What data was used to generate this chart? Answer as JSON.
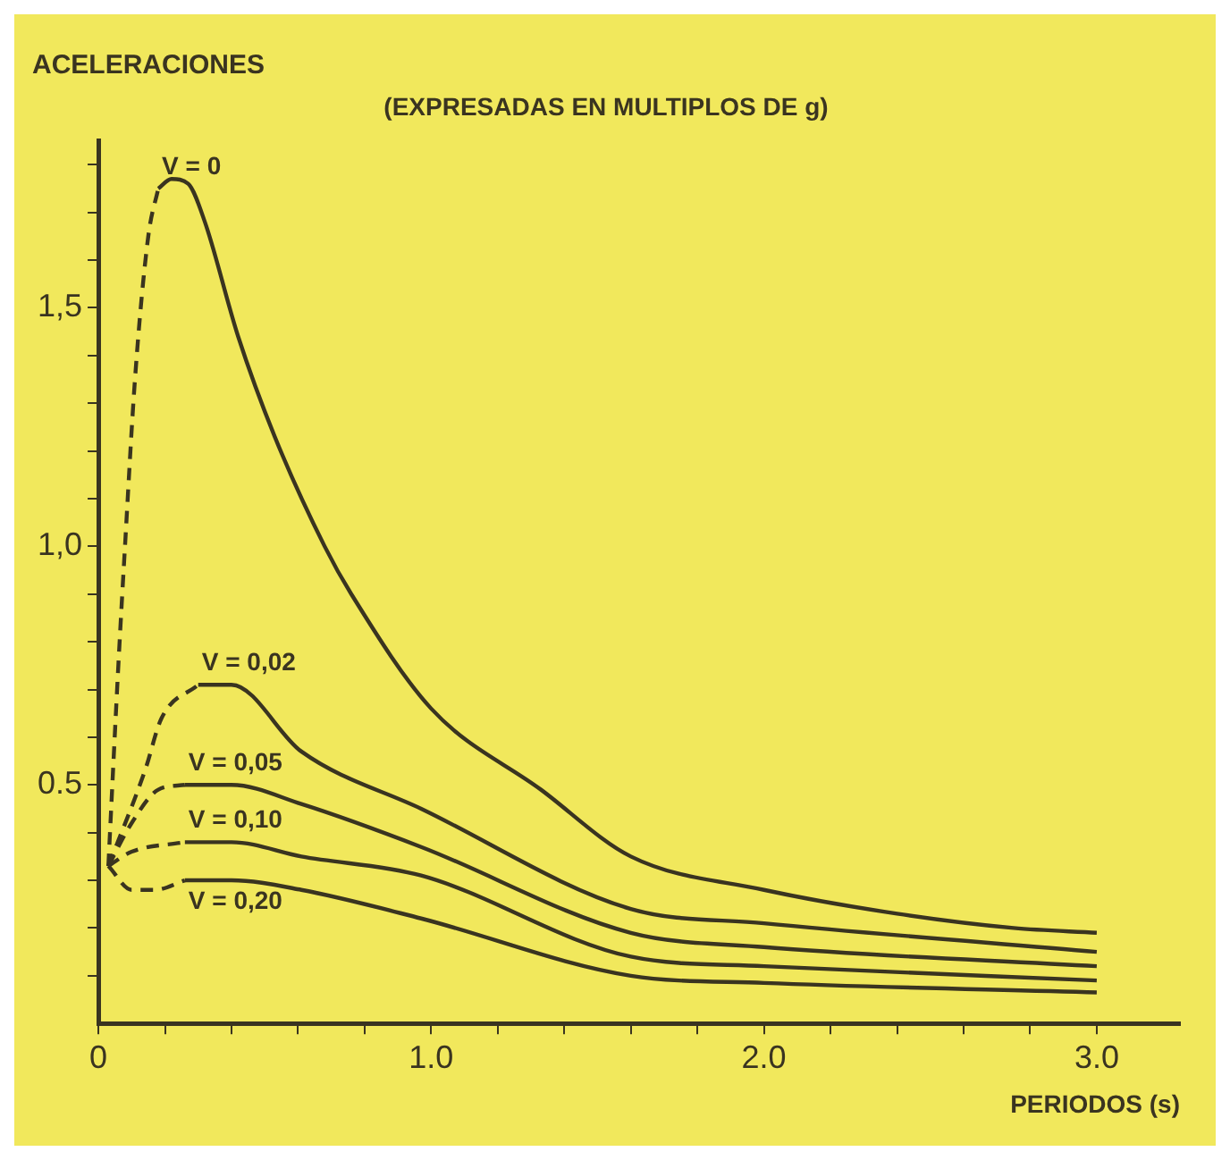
{
  "chart_data": {
    "type": "line",
    "title": "ACELERACIONES",
    "subtitle": "(EXPRESADAS EN MULTIPLOS DE g)",
    "xlabel": "PERIODOS (s)",
    "xlim": [
      0,
      3.25
    ],
    "ylim": [
      0,
      1.85
    ],
    "xticks": [
      {
        "value": 0,
        "label": "0"
      },
      {
        "value": 0.2,
        "label": null
      },
      {
        "value": 0.4,
        "label": null
      },
      {
        "value": 0.6,
        "label": null
      },
      {
        "value": 0.8,
        "label": null
      },
      {
        "value": 1,
        "label": "1.0"
      },
      {
        "value": 1.2,
        "label": null
      },
      {
        "value": 1.4,
        "label": null
      },
      {
        "value": 1.6,
        "label": null
      },
      {
        "value": 1.8,
        "label": null
      },
      {
        "value": 2,
        "label": "2.0"
      },
      {
        "value": 2.2,
        "label": null
      },
      {
        "value": 2.4,
        "label": null
      },
      {
        "value": 2.6,
        "label": null
      },
      {
        "value": 2.8,
        "label": null
      },
      {
        "value": 3,
        "label": "3.0"
      }
    ],
    "yticks": [
      {
        "value": 0.1,
        "label": null
      },
      {
        "value": 0.2,
        "label": null
      },
      {
        "value": 0.3,
        "label": null
      },
      {
        "value": 0.4,
        "label": null
      },
      {
        "value": 0.5,
        "label": "0.5"
      },
      {
        "value": 0.6,
        "label": null
      },
      {
        "value": 0.7,
        "label": null
      },
      {
        "value": 0.8,
        "label": null
      },
      {
        "value": 0.9,
        "label": null
      },
      {
        "value": 1,
        "label": "1,0"
      },
      {
        "value": 1.1,
        "label": null
      },
      {
        "value": 1.2,
        "label": null
      },
      {
        "value": 1.3,
        "label": null
      },
      {
        "value": 1.4,
        "label": null
      },
      {
        "value": 1.5,
        "label": "1,5"
      },
      {
        "value": 1.6,
        "label": null
      },
      {
        "value": 1.7,
        "label": null
      },
      {
        "value": 1.8,
        "label": null
      }
    ],
    "grid": false,
    "legend": false,
    "marker": "none",
    "series": [
      {
        "line_style": "dashed",
        "color": "#3a3420",
        "x": [
          0.03,
          0.06,
          0.08,
          0.11,
          0.15,
          0.18
        ],
        "values": [
          0.33,
          0.75,
          1.0,
          1.35,
          1.65,
          1.75
        ]
      },
      {
        "line_style": "solid",
        "name": "V = 0",
        "color": "#3a3420",
        "x": [
          0.18,
          0.22,
          0.27,
          0.32,
          0.42,
          0.53,
          0.68,
          0.76,
          1.0,
          1.33,
          1.6,
          2.0,
          2.4,
          2.75,
          3.0
        ],
        "values": [
          1.75,
          1.77,
          1.76,
          1.68,
          1.44,
          1.23,
          1.0,
          0.9,
          0.66,
          0.49,
          0.35,
          0.28,
          0.23,
          0.2,
          0.19
        ]
      },
      {
        "line_style": "dashed",
        "color": "#3a3420",
        "x": [
          0.03,
          0.14,
          0.19,
          0.3
        ],
        "values": [
          0.33,
          0.53,
          0.64,
          0.71
        ]
      },
      {
        "line_style": "solid",
        "name": "V = 0,02",
        "color": "#3a3420",
        "x": [
          0.3,
          0.4,
          0.61,
          0.97,
          1.6,
          2.0,
          3.0
        ],
        "values": [
          0.71,
          0.71,
          0.57,
          0.45,
          0.24,
          0.21,
          0.15
        ]
      },
      {
        "line_style": "dashed",
        "color": "#3a3420",
        "x": [
          0.03,
          0.1,
          0.18,
          0.26
        ],
        "values": [
          0.33,
          0.42,
          0.49,
          0.5
        ]
      },
      {
        "line_style": "solid",
        "name": "V = 0,05",
        "color": "#3a3420",
        "x": [
          0.26,
          0.4,
          0.61,
          0.97,
          1.6,
          2.0,
          3.0
        ],
        "values": [
          0.5,
          0.5,
          0.46,
          0.37,
          0.19,
          0.16,
          0.12
        ]
      },
      {
        "line_style": "dashed",
        "color": "#3a3420",
        "x": [
          0.03,
          0.1,
          0.26
        ],
        "values": [
          0.33,
          0.36,
          0.38
        ]
      },
      {
        "line_style": "solid",
        "name": "V = 0,10",
        "color": "#3a3420",
        "x": [
          0.26,
          0.4,
          0.61,
          0.97,
          1.6,
          2.0,
          3.0
        ],
        "values": [
          0.38,
          0.38,
          0.35,
          0.31,
          0.14,
          0.12,
          0.09
        ]
      },
      {
        "line_style": "dashed",
        "color": "#3a3420",
        "x": [
          0.03,
          0.1,
          0.17,
          0.26
        ],
        "values": [
          0.33,
          0.28,
          0.28,
          0.3
        ]
      },
      {
        "line_style": "solid",
        "name": "V = 0,20",
        "color": "#3a3420",
        "x": [
          0.26,
          0.4,
          0.61,
          0.97,
          1.6,
          2.0,
          3.0
        ],
        "values": [
          0.3,
          0.3,
          0.28,
          0.22,
          0.1,
          0.085,
          0.065
        ]
      }
    ]
  }
}
